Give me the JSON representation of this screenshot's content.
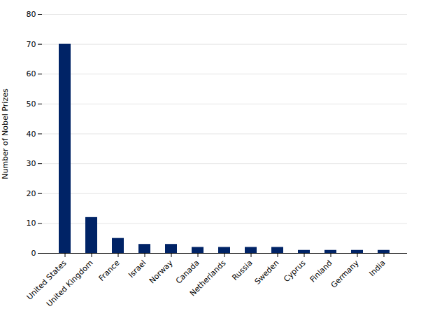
{
  "chart_data": {
    "type": "bar",
    "ylabel": "Number of Nobel Prizes",
    "categories": [
      "United States",
      "United Kingdom",
      "France",
      "Israel",
      "Norway",
      "Canada",
      "Netherlands",
      "Russia",
      "Sweden",
      "Cyprus",
      "Finland",
      "Germany",
      "India"
    ],
    "values": [
      70,
      12,
      5,
      3,
      3,
      2,
      2,
      2,
      2,
      1,
      1,
      1,
      1
    ],
    "color": "#002366",
    "ylim": [
      0,
      80
    ],
    "yticks": [
      0,
      10,
      20,
      30,
      40,
      50,
      60,
      70,
      80
    ],
    "grid": true
  }
}
